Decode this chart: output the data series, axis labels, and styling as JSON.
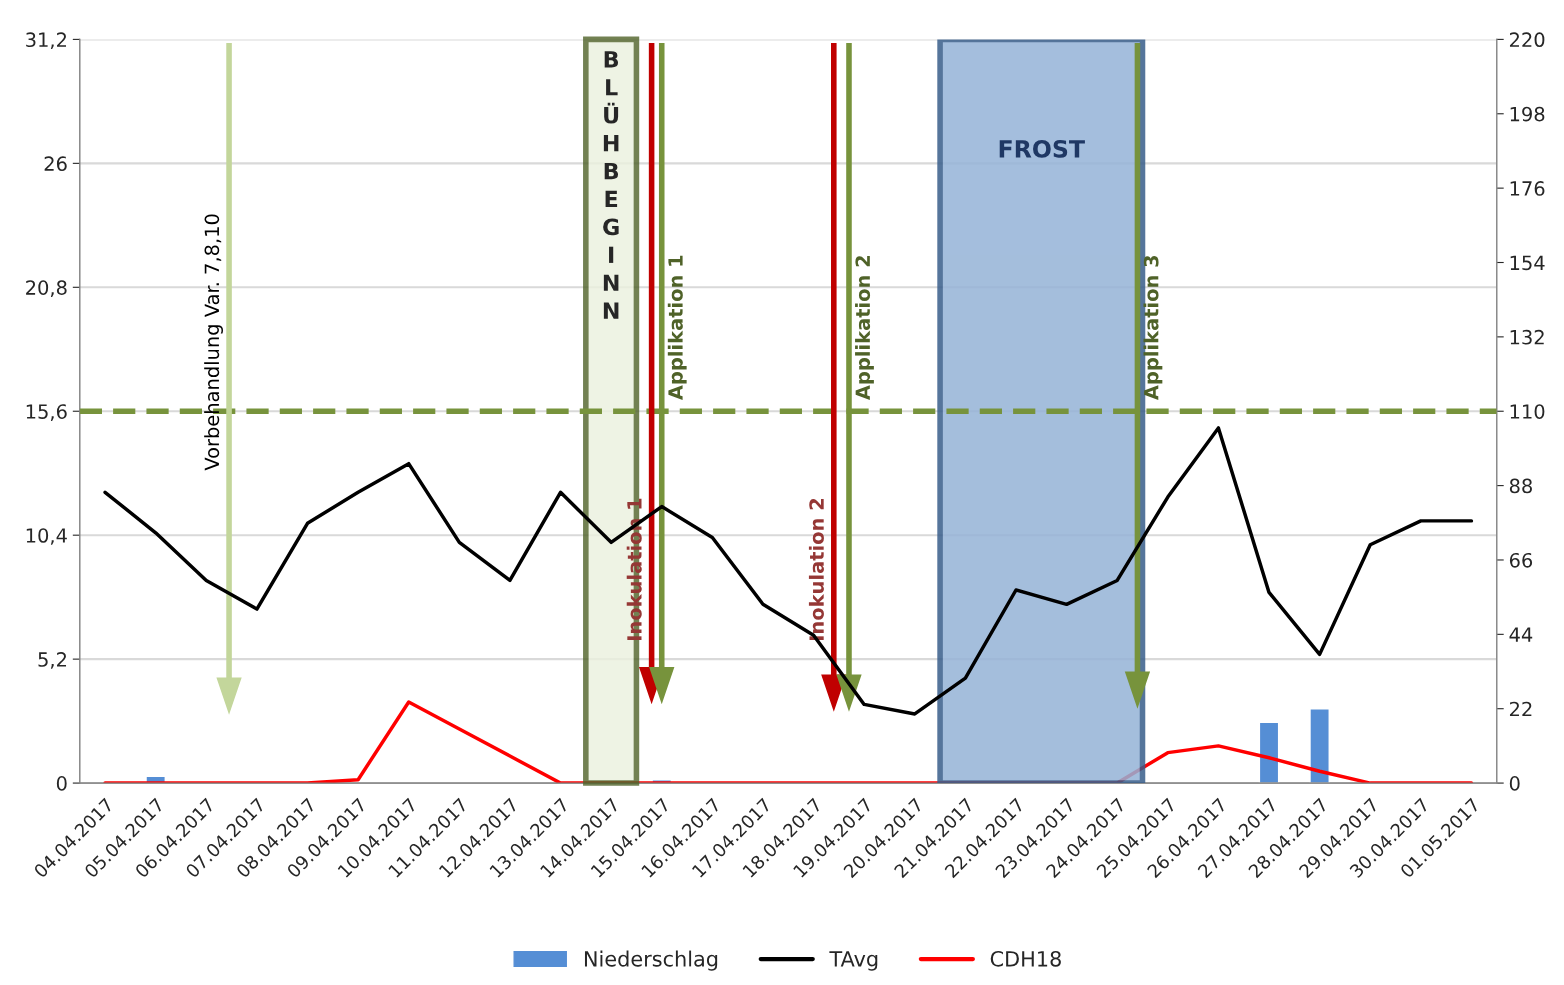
{
  "chart_data": {
    "type": "line",
    "categories": [
      "04.04.2017",
      "05.04.2017",
      "06.04.2017",
      "07.04.2017",
      "08.04.2017",
      "09.04.2017",
      "10.04.2017",
      "11.04.2017",
      "12.04.2017",
      "13.04.2017",
      "14.04.2017",
      "15.04.2017",
      "16.04.2017",
      "17.04.2017",
      "18.04.2017",
      "19.04.2017",
      "20.04.2017",
      "21.04.2017",
      "22.04.2017",
      "23.04.2017",
      "24.04.2017",
      "25.04.2017",
      "26.04.2017",
      "27.04.2017",
      "28.04.2017",
      "29.04.2017",
      "30.04.2017",
      "01.05.2017"
    ],
    "series": [
      {
        "name": "Niederschlag",
        "type": "bar",
        "axis": "y2",
        "color": "#558ed5",
        "values": [
          null,
          2,
          null,
          null,
          null,
          null,
          null,
          null,
          null,
          null,
          null,
          1,
          null,
          null,
          null,
          null,
          null,
          null,
          null,
          null,
          null,
          null,
          null,
          18,
          22,
          null,
          null,
          null
        ]
      },
      {
        "name": "TAvg",
        "color": "#000000",
        "values": [
          12.2,
          10.5,
          8.5,
          7.3,
          10.9,
          12.2,
          13.4,
          10.1,
          8.5,
          12.2,
          10.1,
          11.6,
          10.3,
          7.5,
          6.2,
          3.3,
          2.9,
          4.4,
          8.1,
          7.5,
          8.5,
          12.0,
          14.9,
          8.0,
          5.4,
          10.0,
          11.0,
          11.0
        ]
      },
      {
        "name": "CDH18",
        "type": "line",
        "axis": "y2",
        "color": "#ff0000",
        "values": [
          0,
          0,
          0,
          0,
          0,
          1,
          24,
          16,
          8,
          0,
          0,
          0,
          0,
          0,
          0,
          0,
          0,
          0,
          0,
          0,
          0,
          9,
          11,
          7.5,
          3.5,
          0,
          0,
          0
        ]
      }
    ],
    "ylim": [
      0,
      31.2
    ],
    "yticks": [
      0,
      {
        "value": 5.2,
        "label": "5,2"
      },
      {
        "value": 10.4,
        "label": "10,4"
      },
      {
        "value": 15.6,
        "label": "15,6"
      },
      {
        "value": 20.8,
        "label": "20,8"
      },
      26,
      {
        "value": 31.2,
        "label": "31,2"
      }
    ],
    "y2lim": [
      0,
      220
    ],
    "y2ticks": [
      0,
      22,
      44,
      66,
      88,
      110,
      132,
      154,
      176,
      198,
      220
    ],
    "grid": "y",
    "legend": "bottom",
    "ref_lines": [
      {
        "axis": "y",
        "value": 15.6,
        "color": "#77933c",
        "line_style": "dashed"
      }
    ],
    "bands": [
      {
        "axis": "x",
        "from": "14.04.2017",
        "to": "14.04.2017",
        "label": "BLÜHBEGINN",
        "color": "#ebf1de"
      },
      {
        "axis": "x",
        "from": "21.04.2017",
        "to": "24.04.2017",
        "label": "FROST",
        "color": "#95b3d7"
      }
    ],
    "annotations": [
      "Vorbehandlung Var. 7,8,10",
      "Inokulation 1",
      "Applikation 1",
      "Inokulation 2",
      "Applikation 2",
      "Applikation 3"
    ]
  }
}
